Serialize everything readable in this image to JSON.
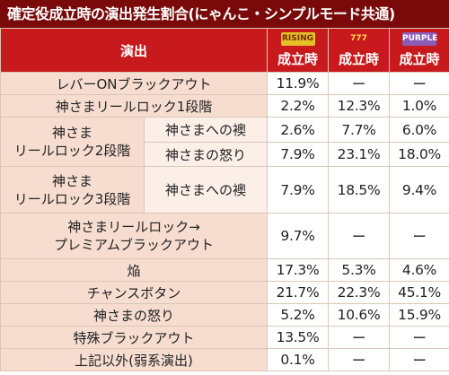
{
  "title": "確定役成立時の演出発生割合(にゃんこ・シンプルモード共通)",
  "header": {
    "label": "演出",
    "cols": [
      {
        "logo": "RISING",
        "label": "成立時",
        "color": "#e6c028"
      },
      {
        "logo": "777",
        "label": "成立時",
        "color": "#c81820"
      },
      {
        "logo": "PURPLE",
        "label": "成立時",
        "color": "#8b5bb8"
      }
    ]
  },
  "rows": [
    {
      "name": "レバーONブラックアウト",
      "v": [
        "11.9%",
        "ー",
        "ー"
      ]
    },
    {
      "name": "神さまリールロック1段階",
      "v": [
        "2.2%",
        "12.3%",
        "1.0%"
      ]
    },
    {
      "group": "神さま\nリールロック2段階",
      "sub": "神さまへの襖",
      "v": [
        "2.6%",
        "7.7%",
        "6.0%"
      ]
    },
    {
      "sub": "神さまの怒り",
      "v": [
        "7.9%",
        "23.1%",
        "18.0%"
      ]
    },
    {
      "group": "神さま\nリールロック3段階",
      "sub": "神さまへの襖",
      "v": [
        "7.9%",
        "18.5%",
        "9.4%"
      ]
    },
    {
      "name": "神さまリールロック→\nプレミアムブラックアウト",
      "v": [
        "9.7%",
        "ー",
        "ー"
      ]
    },
    {
      "name": "焔",
      "v": [
        "17.3%",
        "5.3%",
        "4.6%"
      ]
    },
    {
      "name": "チャンスボタン",
      "v": [
        "21.7%",
        "22.3%",
        "45.1%"
      ]
    },
    {
      "name": "神さまの怒り",
      "v": [
        "5.2%",
        "10.6%",
        "15.9%"
      ]
    },
    {
      "name": "特殊ブラックアウト",
      "v": [
        "13.5%",
        "ー",
        "ー"
      ]
    },
    {
      "name": "上記以外(弱系演出)",
      "v": [
        "0.1%",
        "ー",
        "ー"
      ]
    }
  ]
}
